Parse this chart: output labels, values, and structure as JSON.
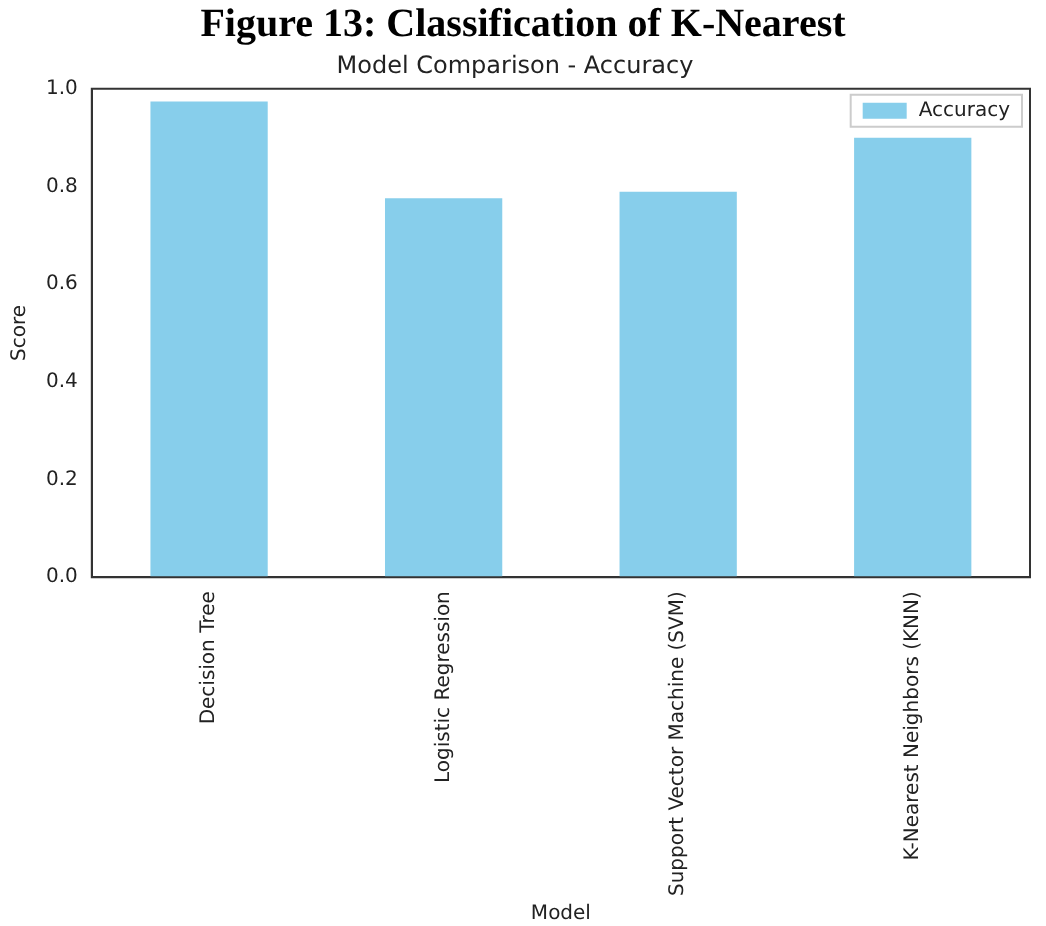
{
  "chart_data": {
    "type": "bar",
    "title": "Model Comparison - Accuracy",
    "xlabel": "Model",
    "ylabel": "Score",
    "annotations": [
      "Figure 13: Classification of K-Nearest"
    ],
    "categories": [
      "Decision Tree",
      "Logistic Regression",
      "Support Vector Machine (SVM)",
      "K-Nearest Neighbors (KNN)"
    ],
    "series": [
      {
        "name": "Accuracy",
        "color": "#87ceeb",
        "values": [
          0.974,
          0.776,
          0.789,
          0.9
        ]
      }
    ],
    "ylim": [
      0,
      1
    ],
    "yticks": [
      {
        "value": 0,
        "label": "0.0"
      },
      {
        "value": 0.2,
        "label": "0.2"
      },
      {
        "value": 0.4,
        "label": "0.4"
      },
      {
        "value": 0.6,
        "label": "0.6"
      },
      {
        "value": 0.8,
        "label": "0.8"
      },
      {
        "value": 1,
        "label": "1.0"
      }
    ],
    "grid": false,
    "legend": "top right"
  }
}
